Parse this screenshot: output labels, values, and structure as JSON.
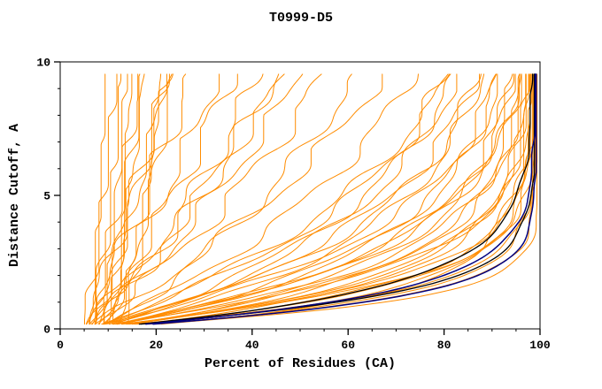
{
  "chart_data": {
    "type": "line",
    "title": "T0999-D5",
    "xlabel": "Percent of Residues (CA)",
    "ylabel": "Distance Cutoff, A",
    "xlim": [
      0,
      100
    ],
    "ylim": [
      0,
      10
    ],
    "xticks": [
      0,
      20,
      40,
      60,
      80,
      100
    ],
    "yticks": [
      0,
      5,
      10
    ],
    "xminor_step": 5,
    "yminor_step": 1,
    "grid": false,
    "legend": "none",
    "colors": {
      "orange": "#ff8c00",
      "navy": "#000080",
      "black": "#000000",
      "axis": "#000000",
      "bg": "#ffffff"
    },
    "curves": [
      {
        "c": "orange",
        "x0": 7,
        "s": 0.95,
        "m": 1.15,
        "cap": 99.4,
        "j": 0.5,
        "p": 0.3
      },
      {
        "c": "orange",
        "x0": 6,
        "s": 1.05,
        "m": 1.1,
        "cap": 99.2,
        "j": 0.6,
        "p": 1.1
      },
      {
        "c": "orange",
        "x0": 8,
        "s": 1.15,
        "m": 1.05,
        "cap": 99.0,
        "j": 0.7,
        "p": 2.0
      },
      {
        "c": "orange",
        "x0": 5,
        "s": 1.25,
        "m": 1.1,
        "cap": 98.8,
        "j": 0.6,
        "p": 2.9
      },
      {
        "c": "orange",
        "x0": 7,
        "s": 1.35,
        "m": 1.0,
        "cap": 98.6,
        "j": 0.8,
        "p": 3.7
      },
      {
        "c": "orange",
        "x0": 6,
        "s": 1.45,
        "m": 1.05,
        "cap": 98.4,
        "j": 0.7,
        "p": 4.5
      },
      {
        "c": "orange",
        "x0": 8,
        "s": 1.55,
        "m": 1.0,
        "cap": 98.2,
        "j": 0.9,
        "p": 5.3
      },
      {
        "c": "orange",
        "x0": 5,
        "s": 1.65,
        "m": 1.1,
        "cap": 98.0,
        "j": 0.8,
        "p": 0.7
      },
      {
        "c": "orange",
        "x0": 7,
        "s": 1.75,
        "m": 0.95,
        "cap": 97.8,
        "j": 1.0,
        "p": 1.6
      },
      {
        "c": "orange",
        "x0": 6,
        "s": 1.85,
        "m": 1.0,
        "cap": 97.6,
        "j": 0.9,
        "p": 2.4
      },
      {
        "c": "orange",
        "x0": 8,
        "s": 1.95,
        "m": 1.05,
        "cap": 97.4,
        "j": 1.0,
        "p": 3.2
      },
      {
        "c": "orange",
        "x0": 5,
        "s": 2.05,
        "m": 0.95,
        "cap": 97.2,
        "j": 1.1,
        "p": 4.0
      },
      {
        "c": "orange",
        "x0": 7,
        "s": 2.2,
        "m": 1.0,
        "cap": 97.0,
        "j": 1.0,
        "p": 4.9
      },
      {
        "c": "orange",
        "x0": 6,
        "s": 2.35,
        "m": 1.05,
        "cap": 96.8,
        "j": 1.2,
        "p": 5.7
      },
      {
        "c": "orange",
        "x0": 8,
        "s": 2.5,
        "m": 0.95,
        "cap": 96.6,
        "j": 1.1,
        "p": 0.4
      },
      {
        "c": "orange",
        "x0": 5,
        "s": 2.65,
        "m": 1.0,
        "cap": 96.4,
        "j": 1.2,
        "p": 1.2
      },
      {
        "c": "orange",
        "x0": 7,
        "s": 2.8,
        "m": 1.05,
        "cap": 96.2,
        "j": 1.3,
        "p": 2.1
      },
      {
        "c": "orange",
        "x0": 6,
        "s": 3.0,
        "m": 0.95,
        "cap": 96.0,
        "j": 1.2,
        "p": 3.0
      },
      {
        "c": "orange",
        "x0": 8,
        "s": 3.2,
        "m": 1.0,
        "cap": 95.7,
        "j": 1.3,
        "p": 3.8
      },
      {
        "c": "orange",
        "x0": 5,
        "s": 3.4,
        "m": 1.05,
        "cap": 95.4,
        "j": 1.4,
        "p": 4.6
      },
      {
        "c": "orange",
        "x0": 7,
        "s": 3.6,
        "m": 0.95,
        "cap": 95.0,
        "j": 1.3,
        "p": 5.5
      },
      {
        "c": "orange",
        "x0": 6,
        "s": 3.85,
        "m": 1.0,
        "cap": 94.6,
        "j": 1.4,
        "p": 0.9
      },
      {
        "c": "orange",
        "x0": 8,
        "s": 4.1,
        "m": 1.05,
        "cap": 94.2,
        "j": 1.5,
        "p": 1.8
      },
      {
        "c": "orange",
        "x0": 5,
        "s": 4.4,
        "m": 0.95,
        "cap": 93.8,
        "j": 1.4,
        "p": 2.6
      },
      {
        "c": "orange",
        "x0": 7,
        "s": 4.7,
        "m": 1.0,
        "cap": 93.4,
        "j": 1.5,
        "p": 3.5
      },
      {
        "c": "orange",
        "x0": 6,
        "s": 5.0,
        "m": 1.05,
        "cap": 93.0,
        "j": 1.5,
        "p": 4.3
      },
      {
        "c": "orange",
        "x0": 6.5,
        "s": 1.6,
        "m": 1.2,
        "cap": 98.9,
        "j": 0.6,
        "p": 5.0
      },
      {
        "c": "orange",
        "x0": 7.5,
        "s": 2.9,
        "m": 1.1,
        "cap": 97.9,
        "j": 1.0,
        "p": 5.9
      },
      {
        "c": "orange",
        "x0": 5.5,
        "s": 2.1,
        "m": 1.15,
        "cap": 98.3,
        "j": 0.8,
        "p": 0.2
      },
      {
        "c": "orange",
        "x0": 6.0,
        "s": 1.2,
        "m": 0.9,
        "cap": 97.0,
        "j": 0.9,
        "p": 2.2
      },
      {
        "c": "orange",
        "x0": 6,
        "s": 6,
        "m": 1.0,
        "cap": 100,
        "j": 1.5,
        "p": 0.5
      },
      {
        "c": "orange",
        "x0": 7,
        "s": 7.5,
        "m": 1.0,
        "cap": 100,
        "j": 1.6,
        "p": 1.4
      },
      {
        "c": "orange",
        "x0": 5,
        "s": 9,
        "m": 1.05,
        "cap": 100,
        "j": 1.8,
        "p": 2.3
      },
      {
        "c": "orange",
        "x0": 8,
        "s": 11,
        "m": 0.95,
        "cap": 100,
        "j": 1.7,
        "p": 3.1
      },
      {
        "c": "orange",
        "x0": 6,
        "s": 13,
        "m": 1.0,
        "cap": 100,
        "j": 1.9,
        "p": 4.0
      },
      {
        "c": "orange",
        "x0": 7,
        "s": 15,
        "m": 1.05,
        "cap": 100,
        "j": 1.8,
        "p": 4.8
      },
      {
        "c": "orange",
        "x0": 5,
        "s": 18,
        "m": 0.95,
        "cap": 100,
        "j": 2.0,
        "p": 5.6
      },
      {
        "c": "orange",
        "x0": 8,
        "s": 21,
        "m": 1.0,
        "cap": 100,
        "j": 1.9,
        "p": 0.8
      },
      {
        "c": "orange",
        "x0": 6,
        "s": 25,
        "m": 1.0,
        "cap": 100,
        "j": 2.0,
        "p": 1.7
      },
      {
        "c": "orange",
        "x0": 7,
        "s": 30,
        "m": 1.0,
        "cap": 100,
        "j": 2.0,
        "p": 2.5
      },
      {
        "c": "orange",
        "x0": 5,
        "s": 36,
        "m": 1.0,
        "cap": 100,
        "j": 2.0,
        "p": 3.4
      },
      {
        "c": "orange",
        "x0": 9,
        "s": 16,
        "m": 1.2,
        "cap": 100,
        "j": 1.6,
        "p": 4.2
      },
      {
        "c": "orange",
        "x0": 5,
        "s": 45,
        "m": 1.0,
        "cap": 100,
        "j": 1.4,
        "p": 0.6
      },
      {
        "c": "orange",
        "x0": 7,
        "s": 55,
        "m": 1.0,
        "cap": 100,
        "j": 1.5,
        "p": 1.5
      },
      {
        "c": "orange",
        "x0": 9,
        "s": 65,
        "m": 1.0,
        "cap": 100,
        "j": 1.3,
        "p": 2.4
      },
      {
        "c": "orange",
        "x0": 6,
        "s": 80,
        "m": 1.0,
        "cap": 100,
        "j": 1.4,
        "p": 3.2
      },
      {
        "c": "orange",
        "x0": 8,
        "s": 95,
        "m": 1.0,
        "cap": 100,
        "j": 1.2,
        "p": 4.1
      },
      {
        "c": "orange",
        "x0": 10,
        "s": 115,
        "m": 1.0,
        "cap": 100,
        "j": 1.3,
        "p": 4.9
      },
      {
        "c": "orange",
        "x0": 5,
        "s": 140,
        "m": 1.0,
        "cap": 100,
        "j": 1.1,
        "p": 5.8
      },
      {
        "c": "orange",
        "x0": 7,
        "s": 170,
        "m": 1.0,
        "cap": 100,
        "j": 1.2,
        "p": 1.0
      },
      {
        "c": "orange",
        "x0": 9,
        "s": 210,
        "m": 1.0,
        "cap": 100,
        "j": 1.0,
        "p": 1.9
      },
      {
        "c": "orange",
        "x0": 11,
        "s": 260,
        "m": 1.0,
        "cap": 100,
        "j": 1.0,
        "p": 2.7
      },
      {
        "c": "orange",
        "x0": 6,
        "s": 320,
        "m": 1.0,
        "cap": 100,
        "j": 0.9,
        "p": 3.6
      },
      {
        "c": "orange",
        "x0": 12,
        "s": 70,
        "m": 1.0,
        "cap": 100,
        "j": 1.4,
        "p": 4.4
      },
      {
        "c": "orange",
        "x0": 14,
        "s": 120,
        "m": 1.0,
        "cap": 100,
        "j": 1.2,
        "p": 5.2
      },
      {
        "c": "black",
        "x0": 6,
        "s": 1.5,
        "m": 1.0,
        "cap": 98.5,
        "j": 0.3,
        "p": 0.9,
        "w": 1.3
      },
      {
        "c": "black",
        "x0": 6,
        "s": 1.2,
        "m": 1.1,
        "cap": 98.8,
        "j": 0.3,
        "p": 2.0,
        "w": 1.3
      },
      {
        "c": "navy",
        "x0": 7,
        "s": 1.05,
        "m": 1.1,
        "cap": 99.2,
        "j": 0.25,
        "p": 1.2,
        "w": 1.5
      },
      {
        "c": "navy",
        "x0": 7,
        "s": 1.3,
        "m": 1.05,
        "cap": 99.0,
        "j": 0.25,
        "p": 3.1,
        "w": 1.5
      }
    ]
  }
}
